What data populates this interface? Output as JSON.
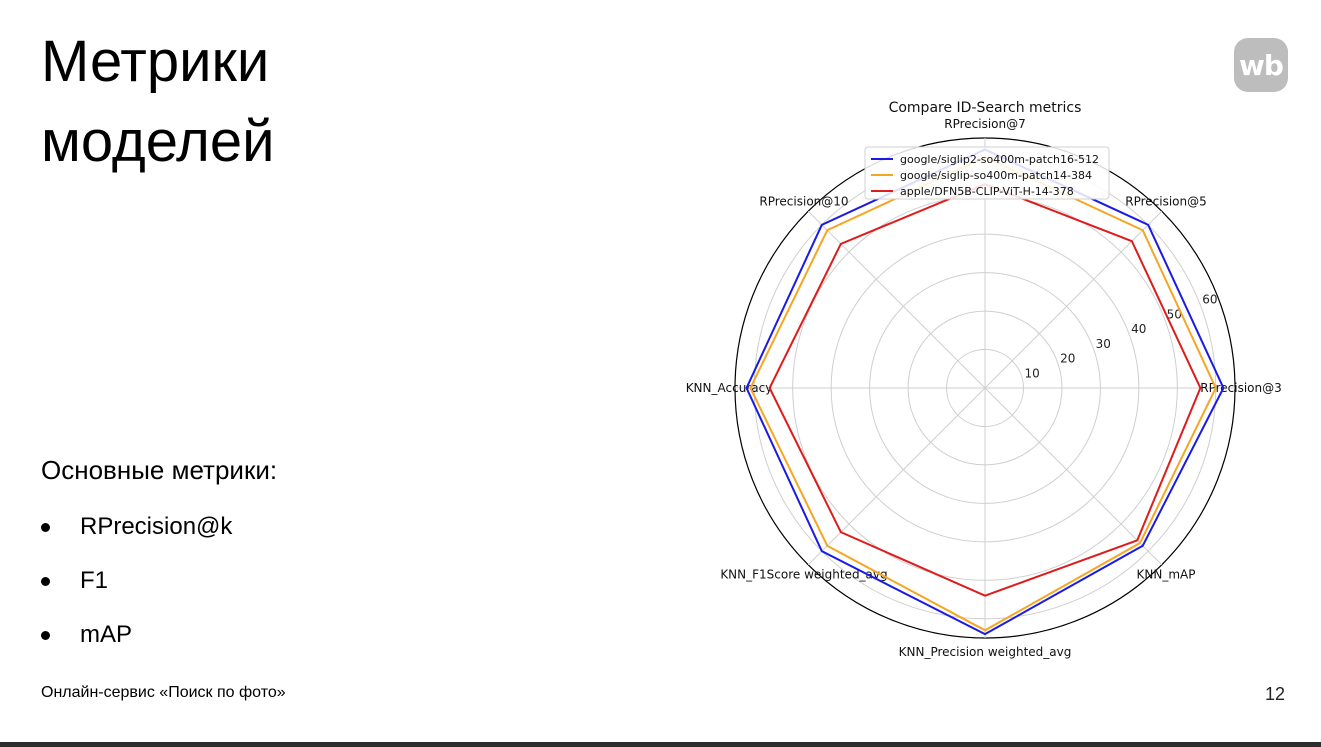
{
  "slide": {
    "title": "Метрики моделей",
    "logo_text": "wb",
    "metrics_heading": "Основные метрики:",
    "metrics": [
      "RPrecision@k",
      "F1",
      "mAP"
    ],
    "footer": "Онлайн-сервис «Поиск по фото»",
    "page_number": "12"
  },
  "chart_data": {
    "type": "radar",
    "title": "Compare ID-Search metrics",
    "axes": [
      "RPrecision@3",
      "RPrecision@5",
      "RPrecision@7",
      "RPrecision@10",
      "KNN_Accuracy",
      "KNN_F1Score weighted_avg",
      "KNN_Precision weighted_avg",
      "KNN_mAP"
    ],
    "rmax": 65,
    "rticks": [
      10,
      20,
      30,
      40,
      50,
      60
    ],
    "legend_position": "top-right",
    "series": [
      {
        "name": "google/siglip2-so400m-patch16-512",
        "color": "#1a1ae6",
        "values": [
          62,
          60,
          62,
          60,
          62,
          60,
          64,
          58
        ]
      },
      {
        "name": "google/siglip-so400m-patch14-384",
        "color": "#f5a623",
        "values": [
          60,
          58,
          60,
          58,
          61,
          58,
          63,
          57
        ]
      },
      {
        "name": "apple/DFN5B-CLIP-ViT-H-14-378",
        "color": "#e01b1b",
        "values": [
          56,
          54,
          53,
          53,
          56,
          53,
          54,
          56
        ]
      }
    ]
  }
}
